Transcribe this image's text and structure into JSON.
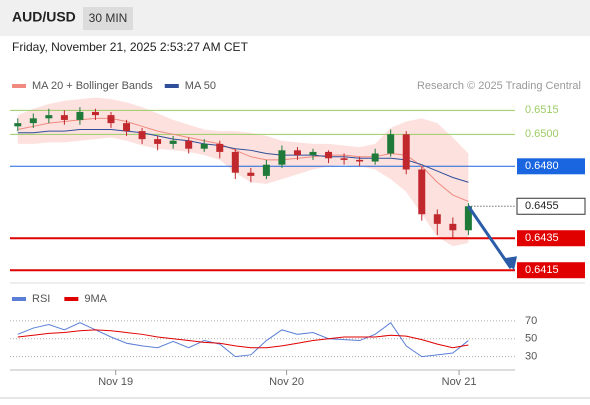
{
  "header": {
    "symbol": "AUD/USD",
    "interval": "30 MIN",
    "datetime": "Friday, November 21, 2025 2:53:27 AM CET"
  },
  "chart_data": [
    {
      "type": "candlestick",
      "credit": "Research © 2025 Trading Central",
      "legend": [
        {
          "name": "MA 20 + Bollinger Bands",
          "color": "#f08a80"
        },
        {
          "name": "MA 50",
          "color": "#2f4f9a"
        }
      ],
      "x": [
        0,
        1,
        2,
        3,
        4,
        5,
        6,
        7,
        8,
        9,
        10,
        11,
        12,
        13,
        14,
        15,
        16,
        17,
        18,
        19,
        20,
        21,
        22,
        23,
        24,
        25,
        26,
        27,
        28,
        29
      ],
      "xlim": [
        -0.5,
        32
      ],
      "xticks": [
        {
          "value": 6.3,
          "label": "Nov 19"
        },
        {
          "value": 17.3,
          "label": "Nov 20"
        },
        {
          "value": 28.4,
          "label": "Nov 21"
        }
      ],
      "ylim": [
        0.6407,
        0.6559
      ],
      "open": [
        0.6505,
        0.6507,
        0.651,
        0.6512,
        0.6509,
        0.6514,
        0.6512,
        0.6507,
        0.6502,
        0.6497,
        0.6494,
        0.6496,
        0.6491,
        0.6494,
        0.6489,
        0.6476,
        0.6474,
        0.6481,
        0.649,
        0.6487,
        0.6489,
        0.6485,
        0.6484,
        0.6483,
        0.6488,
        0.65,
        0.6478,
        0.645,
        0.6444,
        0.644
      ],
      "high": [
        0.651,
        0.6513,
        0.6516,
        0.6515,
        0.6517,
        0.6516,
        0.6514,
        0.6509,
        0.6504,
        0.6499,
        0.6499,
        0.6498,
        0.6497,
        0.6496,
        0.6491,
        0.6479,
        0.6484,
        0.6493,
        0.6492,
        0.6491,
        0.649,
        0.6488,
        0.6486,
        0.6491,
        0.6503,
        0.6502,
        0.648,
        0.6453,
        0.6448,
        0.6457
      ],
      "low": [
        0.6502,
        0.6504,
        0.6507,
        0.6506,
        0.6506,
        0.6509,
        0.6504,
        0.6499,
        0.6494,
        0.649,
        0.6491,
        0.6488,
        0.6489,
        0.6485,
        0.6472,
        0.647,
        0.6472,
        0.6479,
        0.6484,
        0.6484,
        0.6482,
        0.6481,
        0.648,
        0.6481,
        0.6486,
        0.6475,
        0.6446,
        0.6437,
        0.6435,
        0.6437
      ],
      "close": [
        0.6507,
        0.651,
        0.6512,
        0.6509,
        0.6514,
        0.6512,
        0.6507,
        0.6502,
        0.6497,
        0.6494,
        0.6496,
        0.6491,
        0.6494,
        0.6489,
        0.6476,
        0.6474,
        0.6481,
        0.649,
        0.6487,
        0.6489,
        0.6485,
        0.6484,
        0.6483,
        0.6488,
        0.65,
        0.6478,
        0.645,
        0.6444,
        0.644,
        0.6455
      ],
      "up_color": "#1f7a3a",
      "down_color": "#c0282d",
      "band": {
        "color": "#fbd9d6",
        "upper": [
          0.6512,
          0.6516,
          0.6519,
          0.6521,
          0.6522,
          0.6523,
          0.6522,
          0.652,
          0.6517,
          0.6513,
          0.6509,
          0.6506,
          0.6503,
          0.6502,
          0.6502,
          0.6501,
          0.6499,
          0.6496,
          0.6495,
          0.6494,
          0.6494,
          0.6493,
          0.6492,
          0.6494,
          0.6504,
          0.6508,
          0.651,
          0.6507,
          0.6498,
          0.6488
        ],
        "lower": [
          0.6494,
          0.6494,
          0.6495,
          0.6495,
          0.6496,
          0.6497,
          0.6498,
          0.6496,
          0.6493,
          0.6491,
          0.649,
          0.6489,
          0.6487,
          0.6484,
          0.6476,
          0.647,
          0.6469,
          0.6472,
          0.6475,
          0.6478,
          0.648,
          0.6481,
          0.648,
          0.6478,
          0.6472,
          0.6464,
          0.645,
          0.6436,
          0.643,
          0.6432
        ]
      },
      "series": [
        {
          "name": "MA 20",
          "color": "#f08a80",
          "values": [
            0.6503,
            0.6505,
            0.6507,
            0.6508,
            0.6509,
            0.651,
            0.651,
            0.6508,
            0.6505,
            0.6502,
            0.65,
            0.6498,
            0.6496,
            0.6494,
            0.649,
            0.6486,
            0.6484,
            0.6484,
            0.6485,
            0.6486,
            0.6487,
            0.6487,
            0.6486,
            0.6486,
            0.6488,
            0.6487,
            0.648,
            0.647,
            0.6462,
            0.6458
          ]
        },
        {
          "name": "MA 50",
          "color": "#2f4f9a",
          "values": [
            0.6501,
            0.6501,
            0.6502,
            0.6502,
            0.6503,
            0.6503,
            0.6503,
            0.6502,
            0.6501,
            0.6499,
            0.6497,
            0.6496,
            0.6494,
            0.6493,
            0.6491,
            0.649,
            0.6488,
            0.6487,
            0.6487,
            0.6487,
            0.6486,
            0.6486,
            0.6485,
            0.6485,
            0.6485,
            0.6484,
            0.6481,
            0.6477,
            0.6473,
            0.647
          ]
        }
      ],
      "levels": [
        {
          "value": 0.6515,
          "label": "0.6515",
          "color": "#9ccc65",
          "style": "plain"
        },
        {
          "value": 0.65,
          "label": "0.6500",
          "color": "#9ccc65",
          "style": "plain"
        },
        {
          "value": 0.648,
          "label": "0.6480",
          "color": "#1a66e0",
          "style": "tag"
        },
        {
          "value": 0.6455,
          "label": "0.6455",
          "color": "#222222",
          "style": "current"
        },
        {
          "value": 0.6435,
          "label": "0.6435",
          "color": "#e00000",
          "style": "tag"
        },
        {
          "value": 0.6415,
          "label": "0.6415",
          "color": "#e00000",
          "style": "tag"
        }
      ],
      "target_color": "#2a5ca8"
    },
    {
      "type": "line",
      "x": [
        0,
        1,
        2,
        3,
        4,
        5,
        6,
        7,
        8,
        9,
        10,
        11,
        12,
        13,
        14,
        15,
        16,
        17,
        18,
        19,
        20,
        21,
        22,
        23,
        24,
        25,
        26,
        27,
        28,
        29
      ],
      "xlim": [
        -0.5,
        32
      ],
      "ylim": [
        15,
        80
      ],
      "yticks": [
        30,
        50,
        70
      ],
      "series": [
        {
          "name": "RSI",
          "color": "#5b7fd6",
          "values": [
            55,
            62,
            66,
            60,
            68,
            60,
            52,
            45,
            42,
            40,
            47,
            40,
            48,
            44,
            30,
            32,
            48,
            60,
            55,
            57,
            50,
            49,
            48,
            55,
            68,
            42,
            30,
            32,
            34,
            48
          ]
        },
        {
          "name": "9MA",
          "color": "#e00000",
          "values": [
            52,
            54,
            56,
            57,
            59,
            60,
            59,
            57,
            55,
            52,
            50,
            48,
            46,
            45,
            42,
            40,
            40,
            42,
            45,
            48,
            50,
            52,
            52,
            52,
            54,
            53,
            49,
            44,
            40,
            43
          ]
        }
      ]
    }
  ]
}
